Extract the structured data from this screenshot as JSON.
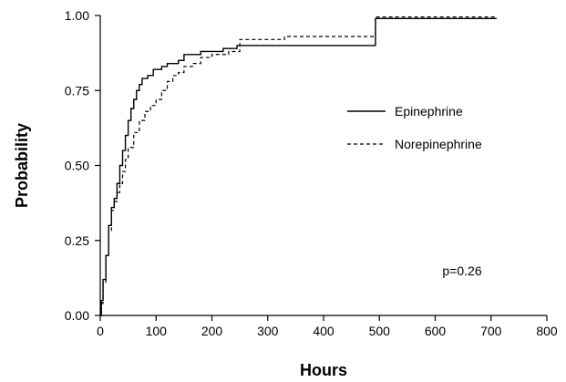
{
  "chart_data": {
    "type": "line",
    "title": "",
    "xlabel": "Hours",
    "ylabel": "Probability",
    "xlim": [
      0,
      800
    ],
    "ylim": [
      0,
      1
    ],
    "xticks": [
      "0",
      "100",
      "200",
      "300",
      "400",
      "500",
      "600",
      "700",
      "800"
    ],
    "yticks": [
      "0.00",
      "0.25",
      "0.50",
      "0.75",
      "1.00"
    ],
    "grid": false,
    "legend_position": "right",
    "annotation": "p=0.26",
    "series": [
      {
        "name": "Epinephrine",
        "style": "solid",
        "color": "#000000",
        "points": [
          [
            0,
            0.0
          ],
          [
            2,
            0.05
          ],
          [
            5,
            0.12
          ],
          [
            10,
            0.2
          ],
          [
            15,
            0.3
          ],
          [
            20,
            0.36
          ],
          [
            25,
            0.39
          ],
          [
            30,
            0.44
          ],
          [
            35,
            0.5
          ],
          [
            40,
            0.55
          ],
          [
            45,
            0.6
          ],
          [
            50,
            0.65
          ],
          [
            55,
            0.69
          ],
          [
            60,
            0.72
          ],
          [
            65,
            0.75
          ],
          [
            70,
            0.77
          ],
          [
            75,
            0.79
          ],
          [
            85,
            0.8
          ],
          [
            95,
            0.82
          ],
          [
            110,
            0.83
          ],
          [
            120,
            0.84
          ],
          [
            140,
            0.85
          ],
          [
            150,
            0.87
          ],
          [
            165,
            0.87
          ],
          [
            180,
            0.88
          ],
          [
            200,
            0.88
          ],
          [
            220,
            0.89
          ],
          [
            245,
            0.9
          ],
          [
            300,
            0.9
          ],
          [
            400,
            0.9
          ],
          [
            492,
            0.9
          ],
          [
            493,
            0.99
          ],
          [
            600,
            0.99
          ],
          [
            710,
            0.99
          ]
        ]
      },
      {
        "name": "Norepinephrine",
        "style": "dashed",
        "color": "#000000",
        "points": [
          [
            0,
            0.0
          ],
          [
            2,
            0.04
          ],
          [
            5,
            0.11
          ],
          [
            10,
            0.2
          ],
          [
            15,
            0.28
          ],
          [
            20,
            0.35
          ],
          [
            25,
            0.38
          ],
          [
            30,
            0.41
          ],
          [
            35,
            0.44
          ],
          [
            40,
            0.48
          ],
          [
            45,
            0.52
          ],
          [
            50,
            0.56
          ],
          [
            60,
            0.61
          ],
          [
            70,
            0.65
          ],
          [
            80,
            0.68
          ],
          [
            90,
            0.7
          ],
          [
            100,
            0.72
          ],
          [
            110,
            0.75
          ],
          [
            120,
            0.78
          ],
          [
            130,
            0.8
          ],
          [
            140,
            0.81
          ],
          [
            150,
            0.83
          ],
          [
            165,
            0.84
          ],
          [
            180,
            0.86
          ],
          [
            200,
            0.87
          ],
          [
            230,
            0.88
          ],
          [
            250,
            0.92
          ],
          [
            300,
            0.92
          ],
          [
            330,
            0.93
          ],
          [
            400,
            0.93
          ],
          [
            492,
            0.93
          ],
          [
            493,
            0.995
          ],
          [
            710,
            0.995
          ]
        ]
      }
    ]
  }
}
